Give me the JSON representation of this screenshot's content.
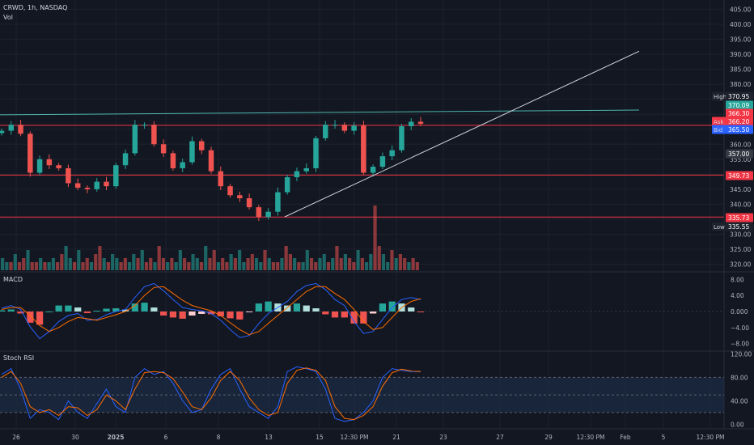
{
  "header": {
    "symbol_line": "CRWD, 1h, NASDAQ",
    "volume_label": "Vol"
  },
  "colors": {
    "up": "#26a69a",
    "down": "#ef5350",
    "background": "#131722",
    "grid": "#1e222d",
    "macd_line": "#2962ff",
    "signal_line": "#ff6d00",
    "level_line": "#f23645",
    "trend_line": "#d1d4dc",
    "resistance_line": "#4db6ac",
    "stoch_band": "#1e3150"
  },
  "chart_data": [
    {
      "name": "price",
      "type": "candlestick",
      "y_ticks": [
        320,
        325,
        330,
        335,
        340,
        345,
        350,
        355,
        360,
        365,
        370,
        375,
        380,
        385,
        390,
        395,
        400,
        405
      ],
      "y_tick_labels": [
        "320.00",
        "325.00",
        "330.00",
        "335.00",
        "340.00",
        "345.00",
        "350.00",
        "355.00",
        "360.00",
        "365.00",
        "370.00",
        "375.00",
        "380.00",
        "385.00",
        "390.00",
        "395.00",
        "400.00",
        "405.00"
      ],
      "ylim": [
        318,
        407
      ],
      "x_labels": [
        "26",
        "30",
        "2025",
        "6",
        "8",
        "13",
        "15",
        "12:30 PM",
        "21",
        "23",
        "27",
        "29",
        "12:30 PM",
        "Feb",
        "5",
        "12:30 PM"
      ],
      "path": [
        364.5,
        366.5,
        363.5,
        350.5,
        355,
        353,
        352,
        347,
        345.5,
        345,
        347.5,
        346,
        353,
        357,
        366.5,
        366.5,
        360,
        357,
        352,
        354,
        361,
        358,
        351,
        346,
        343,
        342,
        339,
        335.73,
        337.5,
        344,
        349,
        351,
        352,
        362,
        366.5,
        366.5,
        364.5,
        366.2,
        350.5,
        352.5,
        356,
        358,
        366,
        367.5,
        366.8
      ],
      "levels": [
        {
          "label": "370.95",
          "name": "High",
          "value": 370.95,
          "bg": "#1e222d",
          "fg": "#d1d4dc"
        },
        {
          "label": "370.09",
          "value": 370.09,
          "bg": "#26a69a"
        },
        {
          "label": "366.30",
          "value": 366.3,
          "bg": "#f23645"
        },
        {
          "label": "366.20",
          "name": "Ask",
          "value": 366.2,
          "bg": "#f23645"
        },
        {
          "label": "365.50",
          "name": "Bid",
          "value": 365.5,
          "bg": "#2962ff"
        },
        {
          "label": "357.00",
          "value": 357.0,
          "bg": "#363a45"
        },
        {
          "label": "349.73",
          "value": 349.73,
          "bg": "#f23645"
        },
        {
          "label": "335.73",
          "value": 335.73,
          "bg": "#f23645"
        },
        {
          "label": "335.55",
          "name": "Low",
          "value": 335.55,
          "bg": "#1e222d",
          "fg": "#d1d4dc"
        }
      ],
      "horizontal_lines": [
        349.73,
        335.73,
        366.3
      ],
      "resistance_line": {
        "from": [
          0,
          369.8
        ],
        "to": [
          138,
          371.4
        ]
      },
      "trend_line": {
        "from": [
          28,
          335.8
        ],
        "to": [
          138,
          391.0
        ]
      },
      "last_index_ratio": 0.56,
      "total_slots": 160
    },
    {
      "name": "volume",
      "type": "bar",
      "label": "Vol",
      "values": [
        3,
        2,
        2,
        4,
        2,
        3,
        5,
        2,
        2,
        3,
        2,
        2,
        3,
        2,
        4,
        6,
        3,
        2,
        5,
        2,
        3,
        2,
        4,
        6,
        3,
        2,
        4,
        3,
        2,
        3,
        2,
        4,
        3,
        5,
        2,
        3,
        2,
        6,
        3,
        2,
        3,
        2,
        5,
        3,
        2,
        4,
        3,
        2,
        6,
        3,
        5,
        2,
        3,
        2,
        4,
        3,
        5,
        2,
        3,
        4,
        3,
        2,
        5,
        3,
        2,
        2,
        3,
        6,
        4,
        3,
        2,
        2,
        5,
        3,
        2,
        3,
        4,
        2,
        3,
        6,
        3,
        4,
        3,
        2,
        5,
        3,
        2,
        4,
        16,
        6,
        4,
        2,
        5,
        3,
        4,
        3,
        2,
        3,
        2
      ]
    },
    {
      "name": "MACD",
      "type": "line",
      "label": "MACD",
      "y_ticks": [
        8,
        4,
        0,
        -4,
        -8
      ],
      "y_tick_labels": [
        "8.00",
        "4.00",
        "0.000",
        "−4.00",
        "−8.00"
      ],
      "ylim": [
        -9.5,
        9.5
      ],
      "series": [
        {
          "name": "",
          "role": "macd",
          "values": [
            0.8,
            1.5,
            0.5,
            -3.8,
            -6.8,
            -5,
            -2.5,
            -1,
            -0.5,
            -2.2,
            -2,
            -0.8,
            0,
            0.5,
            3.5,
            6.2,
            7,
            5.2,
            3,
            1,
            0.5,
            0.2,
            -0.5,
            -2.2,
            -4.5,
            -6.5,
            -6,
            -3,
            -0.5,
            1,
            2.5,
            5,
            6.5,
            7,
            5.5,
            3,
            1.5,
            -2.5,
            -5.5,
            -5,
            -2,
            1,
            3,
            3.5,
            3
          ]
        },
        {
          "name": "",
          "role": "signal",
          "values": [
            0.5,
            1.0,
            1.0,
            -1,
            -3.5,
            -5,
            -4,
            -2.5,
            -1.5,
            -1.8,
            -2.2,
            -1.5,
            -0.8,
            0,
            1.5,
            4,
            6,
            6.2,
            4.5,
            2.8,
            1.5,
            0.8,
            0.2,
            -1,
            -2.8,
            -4.5,
            -5.8,
            -5,
            -3,
            -1,
            1,
            3,
            5,
            6.2,
            6.2,
            4.5,
            3,
            0.5,
            -2.5,
            -4.5,
            -4,
            -1.5,
            1,
            2.5,
            3.2
          ]
        }
      ],
      "histogram": [
        0.3,
        0.5,
        -0.5,
        -2.8,
        -3.3,
        0,
        1.5,
        1.5,
        1,
        -0.4,
        0.2,
        0.7,
        0.8,
        0.5,
        2,
        2.2,
        1,
        -1,
        -1.5,
        -1.8,
        -1,
        -0.6,
        -0.7,
        -1.2,
        -1.7,
        -2,
        -0.2,
        2,
        2.5,
        2,
        1.5,
        2,
        1.5,
        0.8,
        -0.7,
        -1.5,
        -1.5,
        -3,
        -3,
        -0.5,
        2,
        2.5,
        2,
        1,
        -0.2
      ]
    },
    {
      "name": "Stoch RSI",
      "type": "line",
      "label": "Stoch RSI",
      "y_ticks": [
        120,
        80,
        40,
        0
      ],
      "y_tick_labels": [
        "120.00",
        "80.00",
        "40.00",
        "0.00"
      ],
      "ylim": [
        -5,
        122
      ],
      "band": [
        20,
        80
      ],
      "series": [
        {
          "name": "",
          "role": "k",
          "values": [
            85,
            95,
            60,
            10,
            25,
            20,
            8,
            40,
            20,
            10,
            35,
            60,
            30,
            20,
            80,
            95,
            85,
            90,
            70,
            40,
            20,
            25,
            60,
            85,
            95,
            60,
            30,
            20,
            10,
            30,
            90,
            98,
            95,
            90,
            60,
            10,
            5,
            8,
            20,
            40,
            80,
            95,
            92,
            90,
            90
          ]
        },
        {
          "name": "",
          "role": "d",
          "values": [
            80,
            90,
            70,
            30,
            20,
            25,
            15,
            30,
            28,
            15,
            25,
            50,
            40,
            25,
            60,
            88,
            90,
            88,
            78,
            55,
            30,
            25,
            45,
            75,
            90,
            75,
            45,
            25,
            15,
            20,
            70,
            92,
            96,
            92,
            75,
            30,
            10,
            8,
            15,
            30,
            65,
            88,
            94,
            91,
            90
          ]
        }
      ]
    }
  ]
}
